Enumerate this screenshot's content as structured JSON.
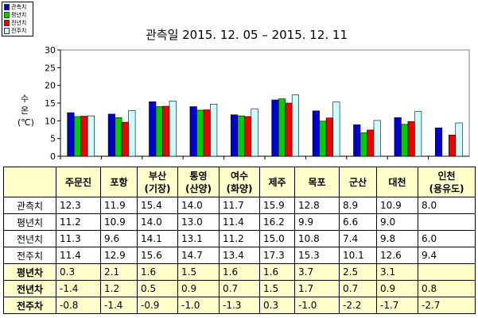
{
  "chart_data": {
    "type": "bar",
    "title": "관측일 2015. 12. 05 – 2015. 12. 11",
    "ylabel": [
      "수",
      "온",
      "(℃)"
    ],
    "ylim": [
      0,
      30
    ],
    "yticks": [
      0,
      5,
      10,
      15,
      20,
      25,
      30
    ],
    "grid": false,
    "legend_position": "top-left",
    "categories": [
      "주문진",
      "포항",
      "부산\n(기장)",
      "통영\n(산양)",
      "여수\n(화양)",
      "제주",
      "목포",
      "군산",
      "대천",
      "인천\n(용유도)"
    ],
    "series": [
      {
        "name": "관측치",
        "color": "#0000cc",
        "values": [
          12.3,
          11.9,
          15.4,
          14.0,
          11.7,
          15.9,
          12.8,
          8.9,
          10.9,
          8.0
        ]
      },
      {
        "name": "평년치",
        "color": "#00cc00",
        "values": [
          11.2,
          10.9,
          14.0,
          13.0,
          11.4,
          16.2,
          9.9,
          6.6,
          9.0,
          null
        ]
      },
      {
        "name": "전년치",
        "color": "#ee0000",
        "values": [
          11.3,
          9.6,
          14.1,
          13.1,
          11.2,
          15.0,
          10.8,
          7.4,
          9.8,
          6.0
        ]
      },
      {
        "name": "전주치",
        "color": "#ccffff",
        "values": [
          11.4,
          12.9,
          15.6,
          14.7,
          13.4,
          17.3,
          15.3,
          10.1,
          12.6,
          9.4
        ]
      }
    ]
  },
  "table": {
    "header": [
      "",
      "주문진",
      "포항",
      "부산\n(기장)",
      "통영\n(산양)",
      "여수\n(화양)",
      "제주",
      "목포",
      "군산",
      "대천",
      "인천\n(용유도)"
    ],
    "rows": [
      {
        "label": "관측치",
        "bold": false,
        "bg": "white",
        "cells": [
          "12.3",
          "11.9",
          "15.4",
          "14.0",
          "11.7",
          "15.9",
          "12.8",
          "8.9",
          "10.9",
          "8.0"
        ]
      },
      {
        "label": "평년치",
        "bold": false,
        "bg": "white",
        "cells": [
          "11.2",
          "10.9",
          "14.0",
          "13.0",
          "11.4",
          "16.2",
          "9.9",
          "6.6",
          "9.0",
          ""
        ]
      },
      {
        "label": "전년치",
        "bold": false,
        "bg": "white",
        "cells": [
          "11.3",
          "9.6",
          "14.1",
          "13.1",
          "11.2",
          "15.0",
          "10.8",
          "7.4",
          "9.8",
          "6.0"
        ]
      },
      {
        "label": "전주치",
        "bold": false,
        "bg": "white",
        "cells": [
          "11.4",
          "12.9",
          "15.6",
          "14.7",
          "13.4",
          "17.3",
          "15.3",
          "10.1",
          "12.6",
          "9.4"
        ]
      },
      {
        "label": "평년차",
        "bold": true,
        "bg": "yellow",
        "cells": [
          "0.3",
          "2.1",
          "1.6",
          "1.5",
          "1.6",
          "1.6",
          "3.7",
          "2.5",
          "3.1",
          ""
        ]
      },
      {
        "label": "전년차",
        "bold": true,
        "bg": "yellow",
        "cells": [
          "-1.4",
          "1.2",
          "0.5",
          "0.9",
          "0.7",
          "1.5",
          "1.7",
          "0.7",
          "0.9",
          "0.8"
        ]
      },
      {
        "label": "전주차",
        "bold": true,
        "bg": "yellow",
        "cells": [
          "-0.8",
          "-1.4",
          "-0.9",
          "-1.0",
          "-1.3",
          "0.3",
          "-1.0",
          "-2.2",
          "-1.7",
          "-2.7"
        ]
      }
    ]
  }
}
